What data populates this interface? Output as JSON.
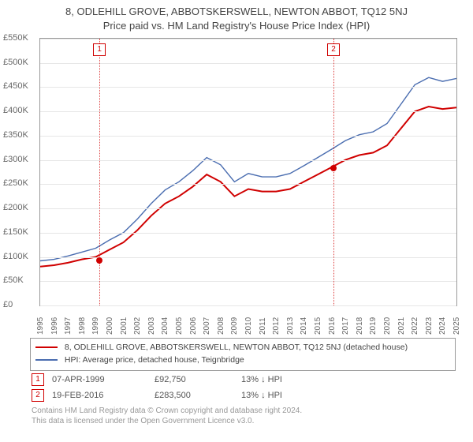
{
  "title_line1": "8, ODLEHILL GROVE, ABBOTSKERSWELL, NEWTON ABBOT, TQ12 5NJ",
  "title_line2": "Price paid vs. HM Land Registry's House Price Index (HPI)",
  "chart": {
    "ylim": [
      0,
      550000
    ],
    "y_ticks": [
      0,
      50000,
      100000,
      150000,
      200000,
      250000,
      300000,
      350000,
      400000,
      450000,
      500000,
      550000
    ],
    "y_labels": [
      "£0",
      "£50K",
      "£100K",
      "£150K",
      "£200K",
      "£250K",
      "£300K",
      "£350K",
      "£400K",
      "£450K",
      "£500K",
      "£550K"
    ],
    "xlim": [
      1995,
      2025
    ],
    "x_ticks": [
      1995,
      1996,
      1997,
      1998,
      1999,
      2000,
      2001,
      2002,
      2003,
      2004,
      2005,
      2006,
      2007,
      2008,
      2009,
      2010,
      2011,
      2012,
      2013,
      2014,
      2015,
      2016,
      2017,
      2018,
      2019,
      2020,
      2021,
      2022,
      2023,
      2024,
      2025
    ],
    "grid_color": "#e6e6e6",
    "series": [
      {
        "name": "price_paid",
        "color": "#d00000",
        "width": 2,
        "points": [
          [
            1995,
            80000
          ],
          [
            1996,
            83000
          ],
          [
            1997,
            88000
          ],
          [
            1998,
            95000
          ],
          [
            1999,
            100000
          ],
          [
            2000,
            115000
          ],
          [
            2001,
            130000
          ],
          [
            2002,
            155000
          ],
          [
            2003,
            185000
          ],
          [
            2004,
            210000
          ],
          [
            2005,
            225000
          ],
          [
            2006,
            245000
          ],
          [
            2007,
            270000
          ],
          [
            2008,
            255000
          ],
          [
            2009,
            225000
          ],
          [
            2010,
            240000
          ],
          [
            2011,
            235000
          ],
          [
            2012,
            235000
          ],
          [
            2013,
            240000
          ],
          [
            2014,
            255000
          ],
          [
            2015,
            270000
          ],
          [
            2016,
            285000
          ],
          [
            2017,
            300000
          ],
          [
            2018,
            310000
          ],
          [
            2019,
            315000
          ],
          [
            2020,
            330000
          ],
          [
            2021,
            365000
          ],
          [
            2022,
            400000
          ],
          [
            2023,
            410000
          ],
          [
            2024,
            405000
          ],
          [
            2025,
            408000
          ]
        ]
      },
      {
        "name": "hpi",
        "color": "#4a6db0",
        "width": 1.4,
        "points": [
          [
            1995,
            92000
          ],
          [
            1996,
            95000
          ],
          [
            1997,
            102000
          ],
          [
            1998,
            110000
          ],
          [
            1999,
            118000
          ],
          [
            2000,
            135000
          ],
          [
            2001,
            150000
          ],
          [
            2002,
            178000
          ],
          [
            2003,
            210000
          ],
          [
            2004,
            238000
          ],
          [
            2005,
            255000
          ],
          [
            2006,
            278000
          ],
          [
            2007,
            305000
          ],
          [
            2008,
            290000
          ],
          [
            2009,
            255000
          ],
          [
            2010,
            272000
          ],
          [
            2011,
            265000
          ],
          [
            2012,
            265000
          ],
          [
            2013,
            272000
          ],
          [
            2014,
            288000
          ],
          [
            2015,
            305000
          ],
          [
            2016,
            322000
          ],
          [
            2017,
            340000
          ],
          [
            2018,
            352000
          ],
          [
            2019,
            358000
          ],
          [
            2020,
            375000
          ],
          [
            2021,
            415000
          ],
          [
            2022,
            455000
          ],
          [
            2023,
            470000
          ],
          [
            2024,
            462000
          ],
          [
            2025,
            468000
          ]
        ]
      }
    ],
    "markers": [
      {
        "n": "1",
        "x": 1999.27,
        "y": 92750
      },
      {
        "n": "2",
        "x": 2016.14,
        "y": 283500
      }
    ]
  },
  "legend": {
    "s1_color": "#d00000",
    "s1_label": "8, ODLEHILL GROVE, ABBOTSKERSWELL, NEWTON ABBOT, TQ12 5NJ (detached house)",
    "s2_color": "#4a6db0",
    "s2_label": "HPI: Average price, detached house, Teignbridge"
  },
  "marker_rows": [
    {
      "n": "1",
      "date": "07-APR-1999",
      "price": "£92,750",
      "delta": "13% ↓ HPI"
    },
    {
      "n": "2",
      "date": "19-FEB-2016",
      "price": "£283,500",
      "delta": "13% ↓ HPI"
    }
  ],
  "copyright_l1": "Contains HM Land Registry data © Crown copyright and database right 2024.",
  "copyright_l2": "This data is licensed under the Open Government Licence v3.0."
}
